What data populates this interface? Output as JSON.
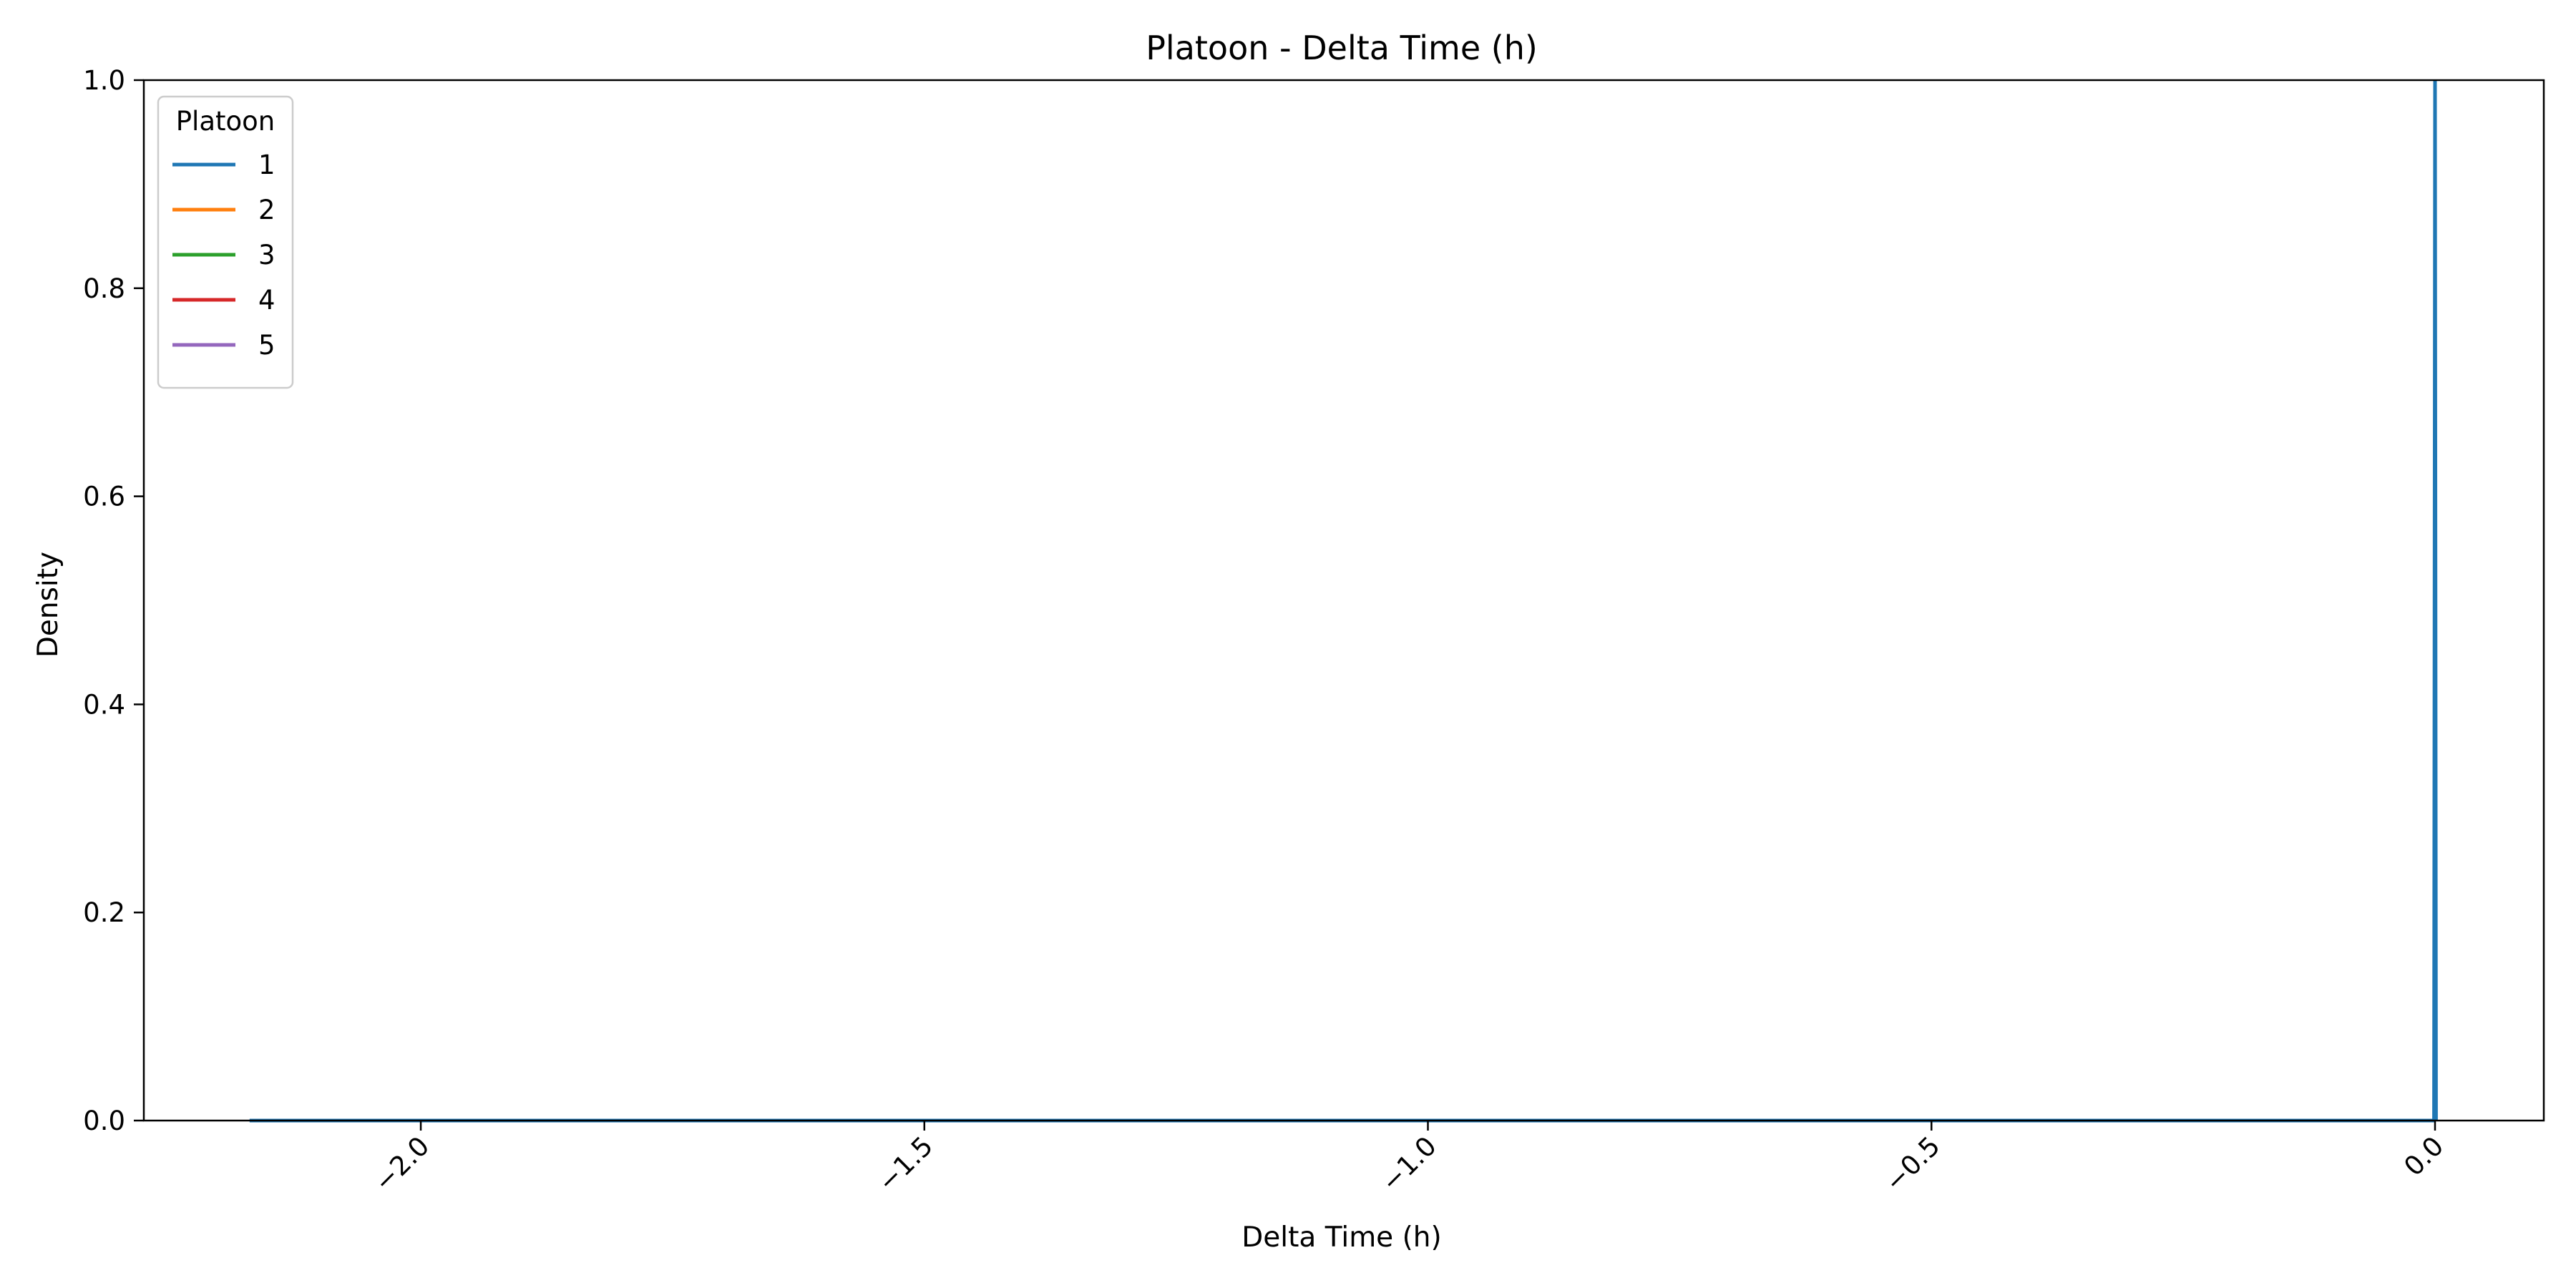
{
  "chart_data": {
    "type": "line",
    "title": "Platoon - Delta Time (h)",
    "xlabel": "Delta Time (h)",
    "ylabel": "Density",
    "xlim": [
      -2.275,
      0.108
    ],
    "ylim": [
      0,
      1
    ],
    "x_ticks": [
      -2.0,
      -1.5,
      -1.0,
      -0.5,
      0.0
    ],
    "x_tick_labels": [
      "−2.0",
      "−1.5",
      "−1.0",
      "−0.5",
      "0.0"
    ],
    "y_ticks": [
      0.0,
      0.2,
      0.4,
      0.6,
      0.8,
      1.0
    ],
    "y_tick_labels": [
      "0.0",
      "0.2",
      "0.4",
      "0.6",
      "0.8",
      "1.0"
    ],
    "grid": false,
    "legend": {
      "title": "Platoon",
      "placement": "top-left"
    },
    "series": [
      {
        "name": "1",
        "color": "#1f77b4",
        "x": [
          -2.17,
          -0.001,
          0.0,
          0.001
        ],
        "y": [
          0,
          0,
          1,
          0
        ]
      },
      {
        "name": "2",
        "color": "#ff7f0e",
        "x": [],
        "y": []
      },
      {
        "name": "3",
        "color": "#2ca02c",
        "x": [],
        "y": []
      },
      {
        "name": "4",
        "color": "#d62728",
        "x": [],
        "y": []
      },
      {
        "name": "5",
        "color": "#9467bd",
        "x": [],
        "y": []
      }
    ]
  }
}
